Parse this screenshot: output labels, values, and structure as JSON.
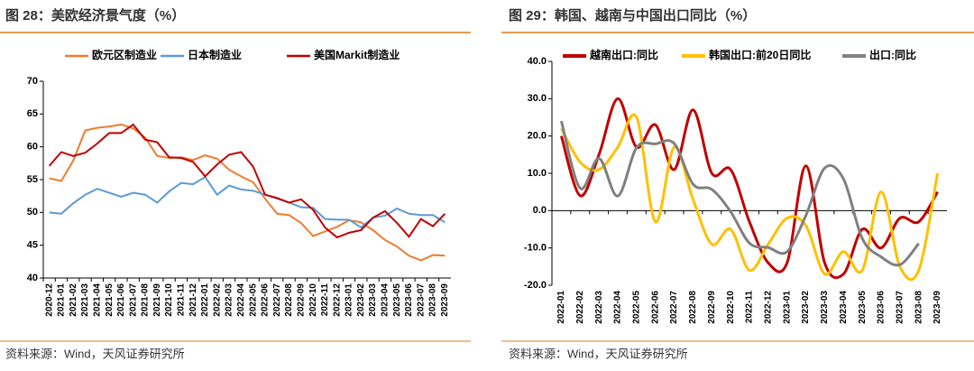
{
  "chart_data": [
    {
      "type": "line",
      "title": "图 28：美欧经济景气度（%）",
      "source": "资料来源：Wind，天风证券研究所",
      "categories": [
        "2020-12",
        "2021-01",
        "2021-02",
        "2021-03",
        "2021-04",
        "2021-05",
        "2021-06",
        "2021-07",
        "2021-08",
        "2021-09",
        "2021-10",
        "2021-11",
        "2021-12",
        "2022-01",
        "2022-02",
        "2022-03",
        "2022-04",
        "2022-05",
        "2022-06",
        "2022-07",
        "2022-08",
        "2022-09",
        "2022-10",
        "2022-11",
        "2022-12",
        "2023-01",
        "2023-02",
        "2023-03",
        "2023-04",
        "2023-05",
        "2023-06",
        "2023-07",
        "2023-08",
        "2023-09"
      ],
      "series": [
        {
          "name": "欧元区制造业",
          "color": "#ed7d31",
          "values": [
            55.2,
            54.8,
            57.9,
            62.5,
            62.9,
            63.1,
            63.4,
            62.8,
            61.4,
            58.6,
            58.3,
            58.4,
            58.0,
            58.7,
            58.2,
            56.5,
            55.5,
            54.6,
            52.1,
            49.8,
            49.6,
            48.4,
            46.4,
            47.1,
            47.8,
            48.8,
            48.5,
            47.3,
            45.8,
            44.8,
            43.4,
            42.7,
            43.5,
            43.4
          ]
        },
        {
          "name": "日本制造业",
          "color": "#5b9bd5",
          "values": [
            50.0,
            49.8,
            51.4,
            52.7,
            53.6,
            53.0,
            52.4,
            53.0,
            52.7,
            51.5,
            53.2,
            54.5,
            54.3,
            55.4,
            52.7,
            54.1,
            53.5,
            53.3,
            52.7,
            52.1,
            51.5,
            50.8,
            50.7,
            49.0,
            48.9,
            48.9,
            47.7,
            49.2,
            49.5,
            50.6,
            49.8,
            49.6,
            49.6,
            48.5
          ]
        },
        {
          "name": "美国Markit制造业",
          "color": "#c00000",
          "values": [
            57.1,
            59.2,
            58.6,
            59.1,
            60.5,
            62.1,
            62.1,
            63.4,
            61.1,
            60.7,
            58.4,
            58.3,
            57.7,
            55.5,
            57.3,
            58.8,
            59.2,
            57.0,
            52.7,
            52.2,
            51.5,
            52.0,
            50.4,
            47.7,
            46.2,
            46.9,
            47.3,
            49.2,
            50.2,
            48.4,
            46.3,
            49.0,
            47.9,
            49.8
          ]
        }
      ],
      "ylim": [
        40,
        70
      ],
      "yticks": [
        40,
        45,
        50,
        55,
        60,
        65,
        70
      ],
      "grid": false,
      "smooth": false
    },
    {
      "type": "line",
      "title": "图 29：韩国、越南与中国出口同比（%）",
      "source": "资料来源：Wind，天风证券研究所",
      "categories": [
        "2022-01",
        "2022-02",
        "2022-03",
        "2022-04",
        "2022-05",
        "2022-06",
        "2022-07",
        "2022-08",
        "2022-09",
        "2022-10",
        "2022-11",
        "2022-12",
        "2023-01",
        "2023-02",
        "2023-03",
        "2023-04",
        "2023-05",
        "2023-06",
        "2023-07",
        "2023-08",
        "2023-09"
      ],
      "series": [
        {
          "name": "越南出口:同比",
          "color": "#c00000",
          "values": [
            20,
            4,
            15,
            30,
            17,
            23,
            11,
            27,
            10,
            11,
            -3,
            -14,
            -14,
            12,
            -14,
            -17,
            -5,
            -10,
            -2,
            -3,
            5
          ]
        },
        {
          "name": "韩国出口:前20日同比",
          "color": "#ffc000",
          "values": [
            22,
            13,
            11,
            17,
            25,
            -3,
            17,
            3,
            -9,
            -5,
            -16,
            -9,
            -2,
            -4,
            -17,
            -11,
            -16,
            5,
            -15,
            -16,
            10
          ]
        },
        {
          "name": "出口:同比",
          "color": "#808080",
          "values": [
            24,
            6,
            14,
            3.9,
            16.9,
            17.9,
            18,
            7.1,
            5.7,
            -0.3,
            -8.7,
            -9.9,
            -11,
            -1.3,
            11.4,
            8.5,
            -7.5,
            -12.4,
            -14.5,
            -8.8,
            null
          ]
        }
      ],
      "ylim": [
        -20,
        40
      ],
      "yticks": [
        {
          "value": -20,
          "label": "-20.0"
        },
        {
          "value": -10,
          "label": "-10.0"
        },
        {
          "value": 0,
          "label": "0.0"
        },
        {
          "value": 10,
          "label": "10.0"
        },
        {
          "value": 20,
          "label": "20.0"
        },
        {
          "value": 30,
          "label": "30.0"
        },
        {
          "value": 40,
          "label": "40.0"
        }
      ],
      "grid": false,
      "smooth": true
    }
  ]
}
